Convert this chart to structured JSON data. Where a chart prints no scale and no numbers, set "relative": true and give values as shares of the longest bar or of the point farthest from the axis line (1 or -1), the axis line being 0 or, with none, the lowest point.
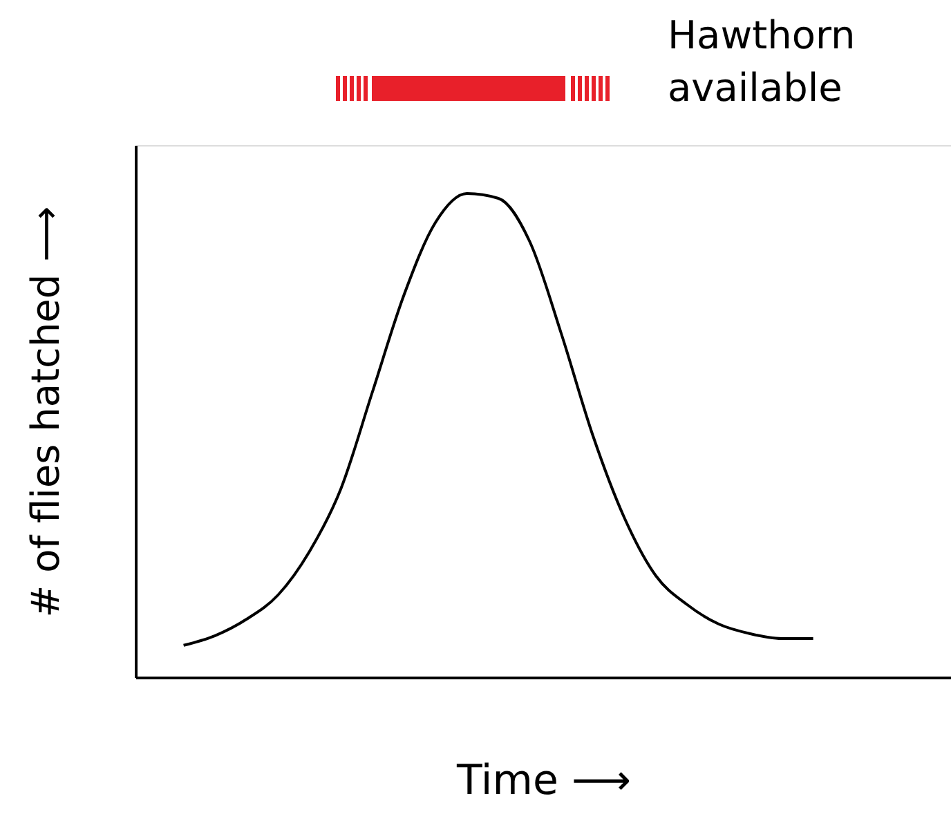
{
  "chart_data": {
    "type": "line",
    "relative": true,
    "xlabel": "Time ⟶",
    "ylabel": "# of flies hatched ⟶",
    "categories": [
      null,
      null,
      null,
      null,
      null,
      null,
      null,
      null,
      null,
      null,
      null,
      null,
      null,
      null,
      null,
      null,
      null,
      null,
      null,
      null,
      null
    ],
    "series": [
      {
        "color": "#000000",
        "values": [
          0.066,
          0.086,
          0.12,
          0.17,
          0.26,
          0.39,
          0.59,
          0.79,
          0.94,
          1.0,
          0.99,
          0.9,
          0.71,
          0.5,
          0.33,
          0.21,
          0.15,
          0.11,
          0.09,
          0.08,
          0.08
        ]
      }
    ],
    "annotations": [
      "Hawthorn available"
    ],
    "grid": false,
    "marker": "none",
    "line_style": "solid"
  }
}
